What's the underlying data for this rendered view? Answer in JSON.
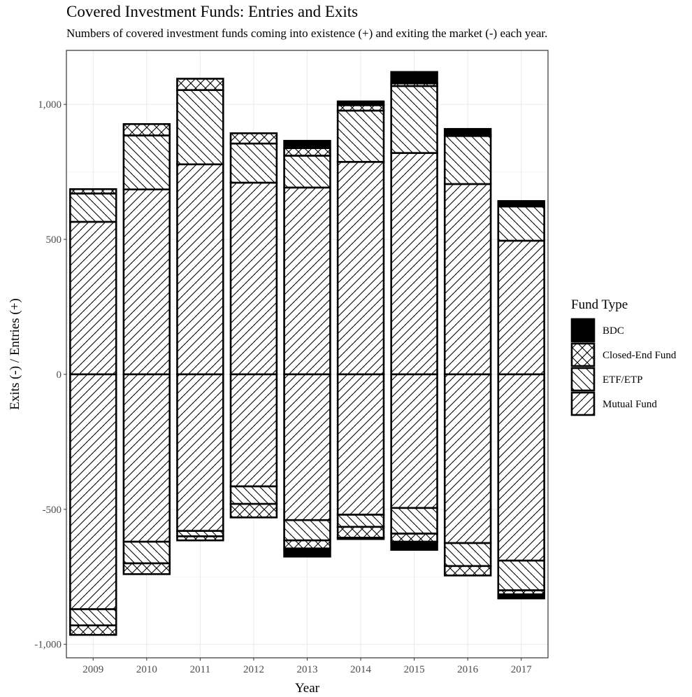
{
  "chart_data": {
    "type": "bar",
    "stacked": "diverging",
    "title": "Covered Investment Funds: Entries and Exits",
    "subtitle": "Numbers of covered investment funds coming into existence (+) and exiting the market (-) each year.",
    "xlabel": "Year",
    "ylabel": "Exits (-) / Entries (+)",
    "ylim": [
      -1050,
      1200
    ],
    "yticks": [
      -1000,
      -500,
      0,
      500,
      1000
    ],
    "ytick_labels": [
      "-1,000",
      "-500",
      "0",
      "500",
      "1,000"
    ],
    "grid": true,
    "legend": {
      "title": "Fund Type",
      "position": "right",
      "entries": [
        "BDC",
        "Closed-End Fund",
        "ETF/ETP",
        "Mutual Fund"
      ]
    },
    "categories": [
      "2009",
      "2010",
      "2011",
      "2012",
      "2013",
      "2014",
      "2015",
      "2016",
      "2017"
    ],
    "series": [
      {
        "name": "Mutual Fund",
        "fill": "diag-forward",
        "entries": [
          565,
          685,
          778,
          710,
          692,
          787,
          820,
          705,
          495
        ],
        "exits": [
          -870,
          -620,
          -580,
          -415,
          -540,
          -520,
          -495,
          -625,
          -690
        ]
      },
      {
        "name": "ETF/ETP",
        "fill": "diag-back",
        "entries": [
          105,
          200,
          275,
          145,
          118,
          190,
          248,
          178,
          127
        ],
        "exits": [
          -60,
          -80,
          -20,
          -65,
          -75,
          -45,
          -95,
          -85,
          -110
        ]
      },
      {
        "name": "Closed-End Fund",
        "fill": "crosshatch",
        "entries": [
          16,
          42,
          42,
          38,
          28,
          20,
          10,
          5,
          3
        ],
        "exits": [
          -35,
          -40,
          -15,
          -50,
          -30,
          -40,
          -30,
          -35,
          -15
        ]
      },
      {
        "name": "BDC",
        "fill": "solid",
        "entries": [
          0,
          0,
          0,
          0,
          27,
          14,
          42,
          21,
          17
        ],
        "exits": [
          0,
          0,
          0,
          0,
          -30,
          -5,
          -30,
          0,
          -15
        ]
      }
    ]
  }
}
